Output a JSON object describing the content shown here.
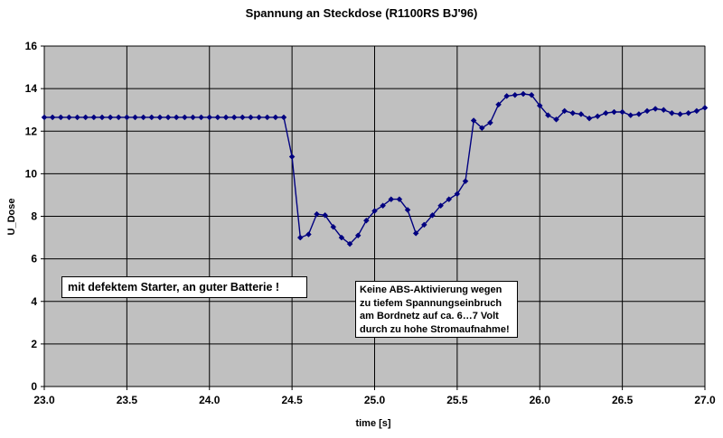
{
  "chart_data": {
    "type": "line",
    "title": "Spannung an Steckdose (R1100RS BJ'96)",
    "xlabel": "time [s]",
    "ylabel": "U_Dose",
    "xlim": [
      23.0,
      27.0
    ],
    "ylim": [
      0,
      16
    ],
    "grid": true,
    "legend": "none",
    "x_ticks": [
      "23.0",
      "23.5",
      "24.0",
      "24.5",
      "25.0",
      "25.5",
      "26.0",
      "26.5",
      "27.0"
    ],
    "y_ticks": [
      "0",
      "2",
      "4",
      "6",
      "8",
      "10",
      "12",
      "14",
      "16"
    ],
    "series": [
      {
        "color": "#000080",
        "marker": "diamond",
        "x": [
          23.0,
          23.05,
          23.1,
          23.15,
          23.2,
          23.25,
          23.3,
          23.35,
          23.4,
          23.45,
          23.5,
          23.55,
          23.6,
          23.65,
          23.7,
          23.75,
          23.8,
          23.85,
          23.9,
          23.95,
          24.0,
          24.05,
          24.1,
          24.15,
          24.2,
          24.25,
          24.3,
          24.35,
          24.4,
          24.45,
          24.5,
          24.55,
          24.6,
          24.65,
          24.7,
          24.75,
          24.8,
          24.85,
          24.9,
          24.95,
          25.0,
          25.05,
          25.1,
          25.15,
          25.2,
          25.25,
          25.3,
          25.35,
          25.4,
          25.45,
          25.5,
          25.55,
          25.6,
          25.65,
          25.7,
          25.75,
          25.8,
          25.85,
          25.9,
          25.95,
          26.0,
          26.05,
          26.1,
          26.15,
          26.2,
          26.25,
          26.3,
          26.35,
          26.4,
          26.45,
          26.5,
          26.55,
          26.6,
          26.65,
          26.7,
          26.75,
          26.8,
          26.85,
          26.9,
          26.95,
          27.0
        ],
        "y": [
          12.65,
          12.65,
          12.65,
          12.65,
          12.65,
          12.65,
          12.65,
          12.65,
          12.65,
          12.65,
          12.65,
          12.65,
          12.65,
          12.65,
          12.65,
          12.65,
          12.65,
          12.65,
          12.65,
          12.65,
          12.65,
          12.65,
          12.65,
          12.65,
          12.65,
          12.65,
          12.65,
          12.65,
          12.65,
          12.65,
          10.8,
          7.0,
          7.15,
          8.1,
          8.05,
          7.5,
          7.0,
          6.7,
          7.1,
          7.8,
          8.25,
          8.5,
          8.8,
          8.8,
          8.3,
          7.2,
          7.6,
          8.05,
          8.5,
          8.8,
          9.05,
          9.65,
          12.5,
          12.15,
          12.4,
          13.25,
          13.65,
          13.7,
          13.75,
          13.7,
          13.2,
          12.75,
          12.55,
          12.95,
          12.85,
          12.8,
          12.6,
          12.7,
          12.85,
          12.9,
          12.9,
          12.75,
          12.8,
          12.95,
          13.05,
          13.0,
          12.85,
          12.8,
          12.85,
          12.95,
          13.1
        ]
      }
    ],
    "annotations": [
      "mit defektem Starter, an guter Batterie !",
      [
        "Keine ABS-Aktivierung wegen",
        "zu tiefem Spannungseinbruch",
        "am Bordnetz auf ca. 6…7 Volt",
        "durch zu hohe Stromaufnahme!"
      ]
    ],
    "colors": {
      "plot_background": "#c0c0c0",
      "gridline": "#000000",
      "series": "#000080"
    }
  }
}
